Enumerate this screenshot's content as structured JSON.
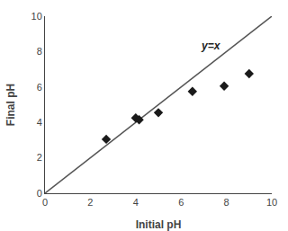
{
  "chart_data": {
    "type": "scatter",
    "xlabel": "Initial pH",
    "ylabel": "Final pH",
    "series": [
      {
        "type": "line",
        "x": [
          0,
          10
        ],
        "values": [
          0,
          10
        ],
        "color": "#555555",
        "line_style": "solid"
      },
      {
        "type": "scatter",
        "x": [
          2.7,
          4.0,
          4.15,
          5.0,
          6.5,
          7.9,
          9.0
        ],
        "values": [
          3.05,
          4.25,
          4.15,
          4.55,
          5.75,
          6.05,
          6.75
        ],
        "color": "#1a1a1a",
        "marker": "diamond"
      }
    ],
    "annotations": [
      {
        "text": "y=x",
        "x": 6.8,
        "y": 7.85
      }
    ],
    "xlim": [
      0,
      10
    ],
    "ylim": [
      0,
      10
    ],
    "xticks": [
      0,
      2,
      4,
      6,
      8,
      10
    ],
    "yticks": [
      0,
      2,
      4,
      6,
      8,
      10
    ],
    "grid": false
  }
}
